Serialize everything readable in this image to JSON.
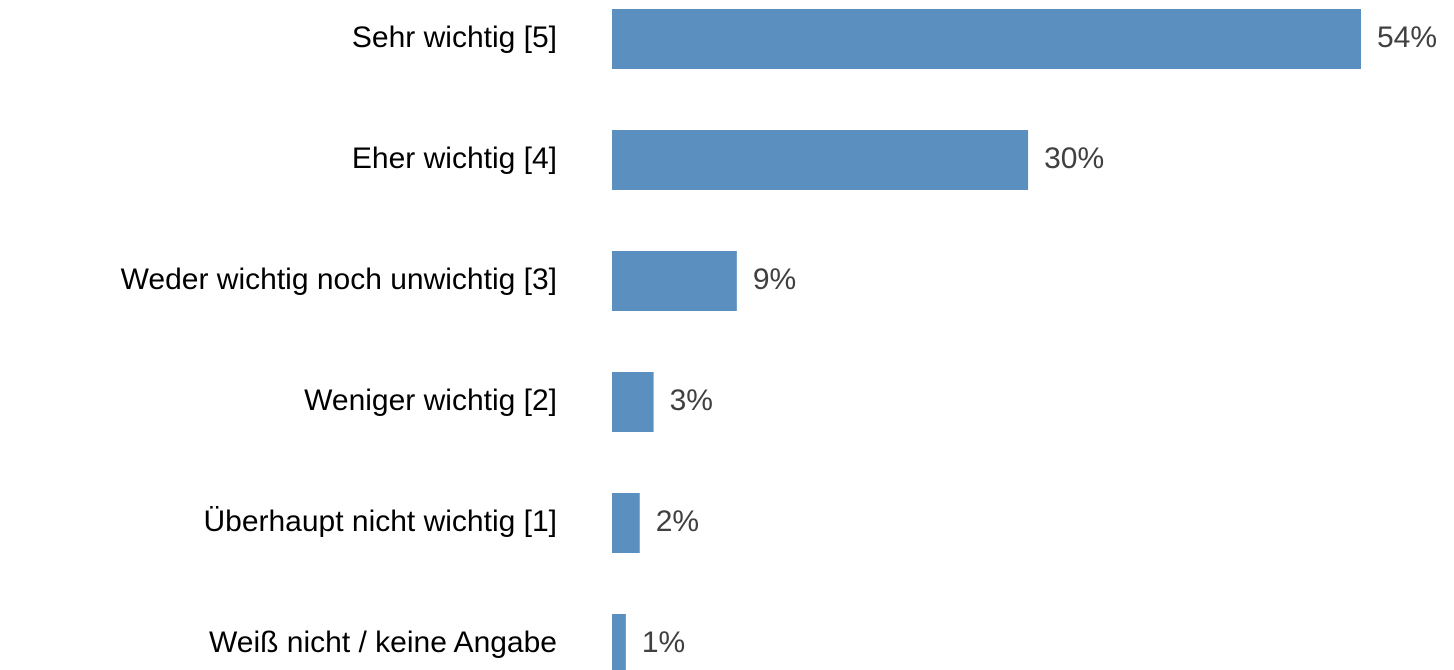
{
  "chart_data": {
    "type": "bar",
    "orientation": "horizontal",
    "categories": [
      "Sehr wichtig [5]",
      "Eher wichtig [4]",
      "Weder wichtig noch unwichtig [3]",
      "Weniger wichtig [2]",
      "Überhaupt nicht wichtig [1]",
      "Weiß nicht / keine Angabe"
    ],
    "values": [
      54,
      30,
      9,
      3,
      2,
      1
    ],
    "value_labels": [
      "54%",
      "30%",
      "9%",
      "3%",
      "2%",
      "1%"
    ],
    "color": "#5a8fbf"
  }
}
